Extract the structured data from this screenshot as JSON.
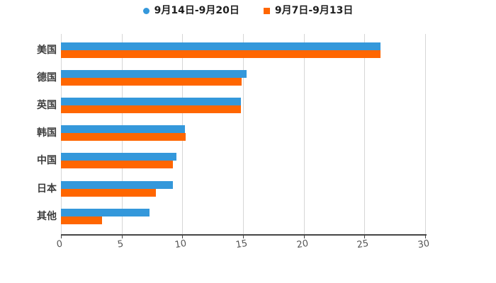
{
  "legend": {
    "items": [
      {
        "label": "9月14日-9月20日",
        "color": "#3498db",
        "marker": "circle"
      },
      {
        "label": "9月7日-9月13日",
        "color": "#ff6600",
        "marker": "square"
      }
    ]
  },
  "chart_data": {
    "type": "bar",
    "orientation": "horizontal",
    "title": "",
    "xlabel": "",
    "ylabel": "",
    "categories": [
      "美国",
      "德国",
      "英国",
      "韩国",
      "中国",
      "日本",
      "其他"
    ],
    "series": [
      {
        "name": "9月14日-9月20日",
        "color": "#3498db",
        "values": [
          26.3,
          15.3,
          14.8,
          10.2,
          9.5,
          9.2,
          7.3
        ]
      },
      {
        "name": "9月7日-9月13日",
        "color": "#ff6600",
        "values": [
          26.3,
          14.9,
          14.8,
          10.3,
          9.2,
          7.8,
          3.4
        ]
      }
    ],
    "xlim": [
      0,
      30
    ],
    "xticks": [
      0,
      5,
      10,
      15,
      20,
      25,
      30
    ],
    "grid": true,
    "legend_position": "top-center",
    "colors": {
      "grid": "#d6d6d6",
      "axis": "#454545",
      "tick_text": "#555555",
      "category_text": "#3d3d3d",
      "legend_text": "#1f1f1f",
      "background": "#ffffff"
    }
  }
}
